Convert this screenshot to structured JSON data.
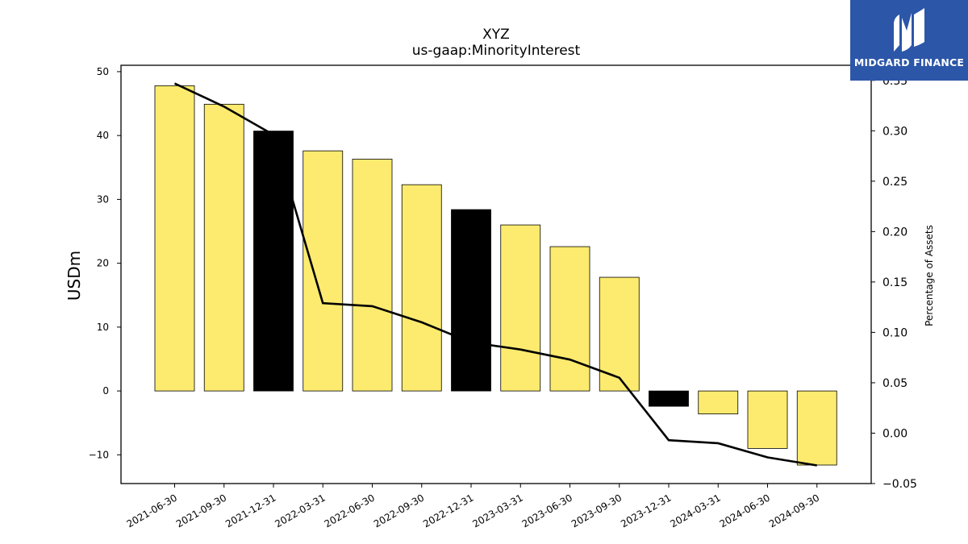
{
  "chart_data": {
    "type": "bar",
    "title": "XYZ",
    "subtitle": "us-gaap:MinorityInterest",
    "ylabel": "USDm",
    "y2label": "Percentage of Assets",
    "ylim": [
      -14.5,
      51
    ],
    "y2lim": [
      -0.05,
      0.365
    ],
    "yticks": [
      -10,
      0,
      10,
      20,
      30,
      40,
      50
    ],
    "y2ticks": [
      -0.05,
      0.0,
      0.05,
      0.1,
      0.15,
      0.2,
      0.25,
      0.3,
      0.35
    ],
    "y2tick_labels": [
      "−0.05",
      "0.00",
      "0.05",
      "0.10",
      "0.15",
      "0.20",
      "0.25",
      "0.30",
      "0.35"
    ],
    "ytick_labels": [
      "−10",
      "0",
      "10",
      "20",
      "30",
      "40",
      "50"
    ],
    "categories": [
      "2021-06-30",
      "2021-09-30",
      "2021-12-31",
      "2022-03-31",
      "2022-06-30",
      "2022-09-30",
      "2022-12-31",
      "2023-03-31",
      "2023-06-30",
      "2023-09-30",
      "2023-12-31",
      "2024-03-31",
      "2024-06-30",
      "2024-09-30"
    ],
    "series": [
      {
        "type": "bar",
        "axis": "left",
        "values": [
          47.8,
          44.9,
          40.7,
          37.6,
          36.3,
          32.3,
          28.4,
          26.0,
          22.6,
          17.8,
          -2.4,
          -3.6,
          -9.0,
          -11.6
        ],
        "colors": [
          "#fdeb6f",
          "#fdeb6f",
          "#000000",
          "#fdeb6f",
          "#fdeb6f",
          "#fdeb6f",
          "#000000",
          "#fdeb6f",
          "#fdeb6f",
          "#fdeb6f",
          "#000000",
          "#fdeb6f",
          "#fdeb6f",
          "#fdeb6f"
        ]
      },
      {
        "type": "line",
        "axis": "right",
        "color": "#000000",
        "values": [
          0.347,
          0.324,
          0.296,
          0.129,
          0.126,
          0.11,
          0.09,
          0.083,
          0.073,
          0.055,
          -0.007,
          -0.01,
          -0.024,
          -0.032
        ]
      }
    ],
    "grid": false,
    "legend": "none"
  },
  "logo": {
    "text": "MIDGARD FINANCE",
    "icon": "midgard-logo-icon",
    "background": "#2c56a8"
  }
}
